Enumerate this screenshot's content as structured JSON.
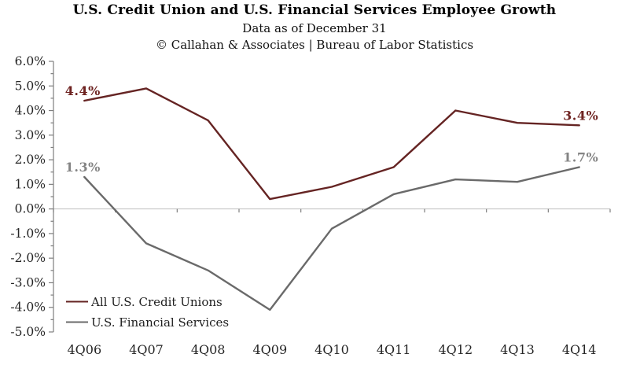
{
  "header": {
    "title": "U.S. Credit Union and U.S. Financial Services Employee Growth",
    "subtitle": "Data as of December 31",
    "credit": "© Callahan & Associates | Bureau of Labor Statistics"
  },
  "chart_data": {
    "type": "line",
    "title": "U.S. Credit Union and U.S. Financial Services Employee Growth",
    "subtitle": "Data as of December 31",
    "source": "© Callahan & Associates | Bureau of Labor Statistics",
    "categories": [
      "4Q06",
      "4Q07",
      "4Q08",
      "4Q09",
      "4Q10",
      "4Q11",
      "4Q12",
      "4Q13",
      "4Q14"
    ],
    "series": [
      {
        "name": "All U.S. Credit Unions",
        "color": "#652423",
        "label_color": "#6e2321",
        "values": [
          4.4,
          4.9,
          3.6,
          0.4,
          0.9,
          1.7,
          4.0,
          3.5,
          3.4
        ]
      },
      {
        "name": "U.S. Financial Services",
        "color": "#6a6a6a",
        "label_color": "#848484",
        "values": [
          1.3,
          -1.4,
          -2.5,
          -4.1,
          -0.8,
          0.6,
          1.2,
          1.1,
          1.7
        ]
      }
    ],
    "xlabel": "",
    "ylabel": "",
    "ylim": [
      -5.0,
      6.0
    ],
    "y_major_step": 1.0,
    "y_minor_step": 0.5,
    "y_tick_labels": [
      "6.0%",
      "5.0%",
      "4.0%",
      "3.0%",
      "2.0%",
      "1.0%",
      "0.0%",
      "-1.0%",
      "-2.0%",
      "-3.0%",
      "-4.0%",
      "-5.0%"
    ],
    "grid": "horizontal-zero-line-only",
    "legend_position": "inside-bottom-left",
    "annotations": [
      {
        "text": "4.4%",
        "series": 0,
        "point": 0,
        "color": "#6e2321"
      },
      {
        "text": "1.3%",
        "series": 1,
        "point": 0,
        "color": "#848484"
      },
      {
        "text": "3.4%",
        "series": 0,
        "point": 8,
        "color": "#6e2321"
      },
      {
        "text": "1.7%",
        "series": 1,
        "point": 8,
        "color": "#848484"
      }
    ],
    "colors": {
      "axis_line": "#7f7f7f",
      "tick": "#7f7f7f",
      "zero_gridline": "#c0c0c0",
      "axis_text": "#262626",
      "legend_text": "#1f1f1f"
    }
  }
}
